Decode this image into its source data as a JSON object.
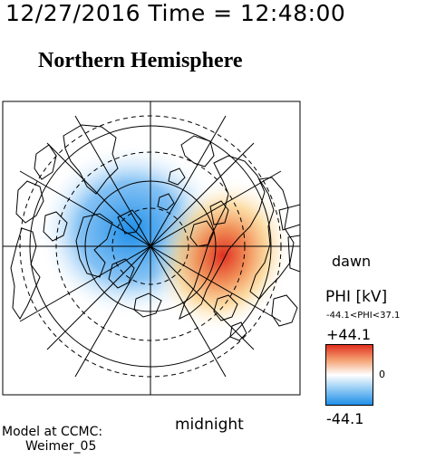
{
  "header": {
    "datetime": "12/27/2016 Time = 12:48:00",
    "hemisphere": "Northern Hemisphere"
  },
  "labels": {
    "dawn": "dawn",
    "midnight": "midnight"
  },
  "colorbar": {
    "title": "PHI [kV]",
    "range_text": "-44.1<PHI<37.1",
    "max_label": "+44.1",
    "min_label": "-44.1",
    "zero_label": "0",
    "colors": {
      "positive": "#e03020",
      "neutral": "#ffffff",
      "negative": "#1f8fe8"
    }
  },
  "footer": {
    "model_line": "Model at CCMC:",
    "model_name": "Weimer_05"
  }
}
